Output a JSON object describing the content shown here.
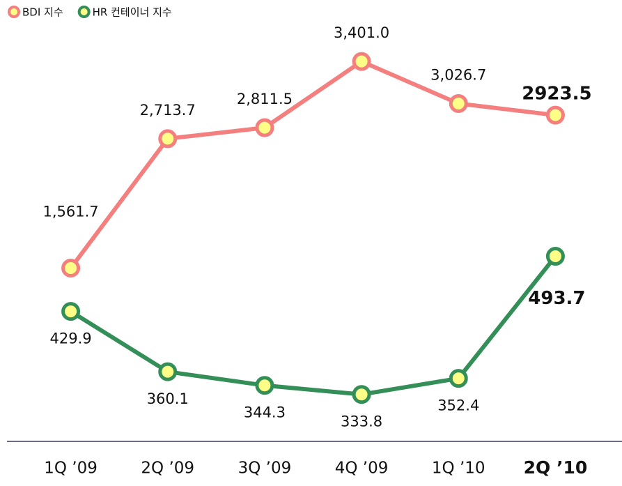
{
  "chart_data": {
    "type": "line",
    "categories": [
      "1Q ’09",
      "2Q ’09",
      "3Q ’09",
      "4Q ’09",
      "1Q ’10",
      "2Q ’10"
    ],
    "ylim": [
      100,
      3700
    ],
    "y2lim": [
      290,
      758
    ],
    "series": [
      {
        "name": "BDI 지수",
        "color": "#f47f7f",
        "values": [
          1561.7,
          2713.7,
          2811.5,
          3401.0,
          3026.7,
          2923.5
        ],
        "value_labels": [
          "1,561.7",
          "2,713.7",
          "2,811.5",
          "3,401.0",
          "3,026.7",
          "2923.5"
        ]
      },
      {
        "name": "HR 컨테이너 지수",
        "color": "#338f57",
        "axis": "y2",
        "values": [
          429.9,
          360.1,
          344.3,
          333.8,
          352.4,
          493.7
        ]
      }
    ]
  }
}
